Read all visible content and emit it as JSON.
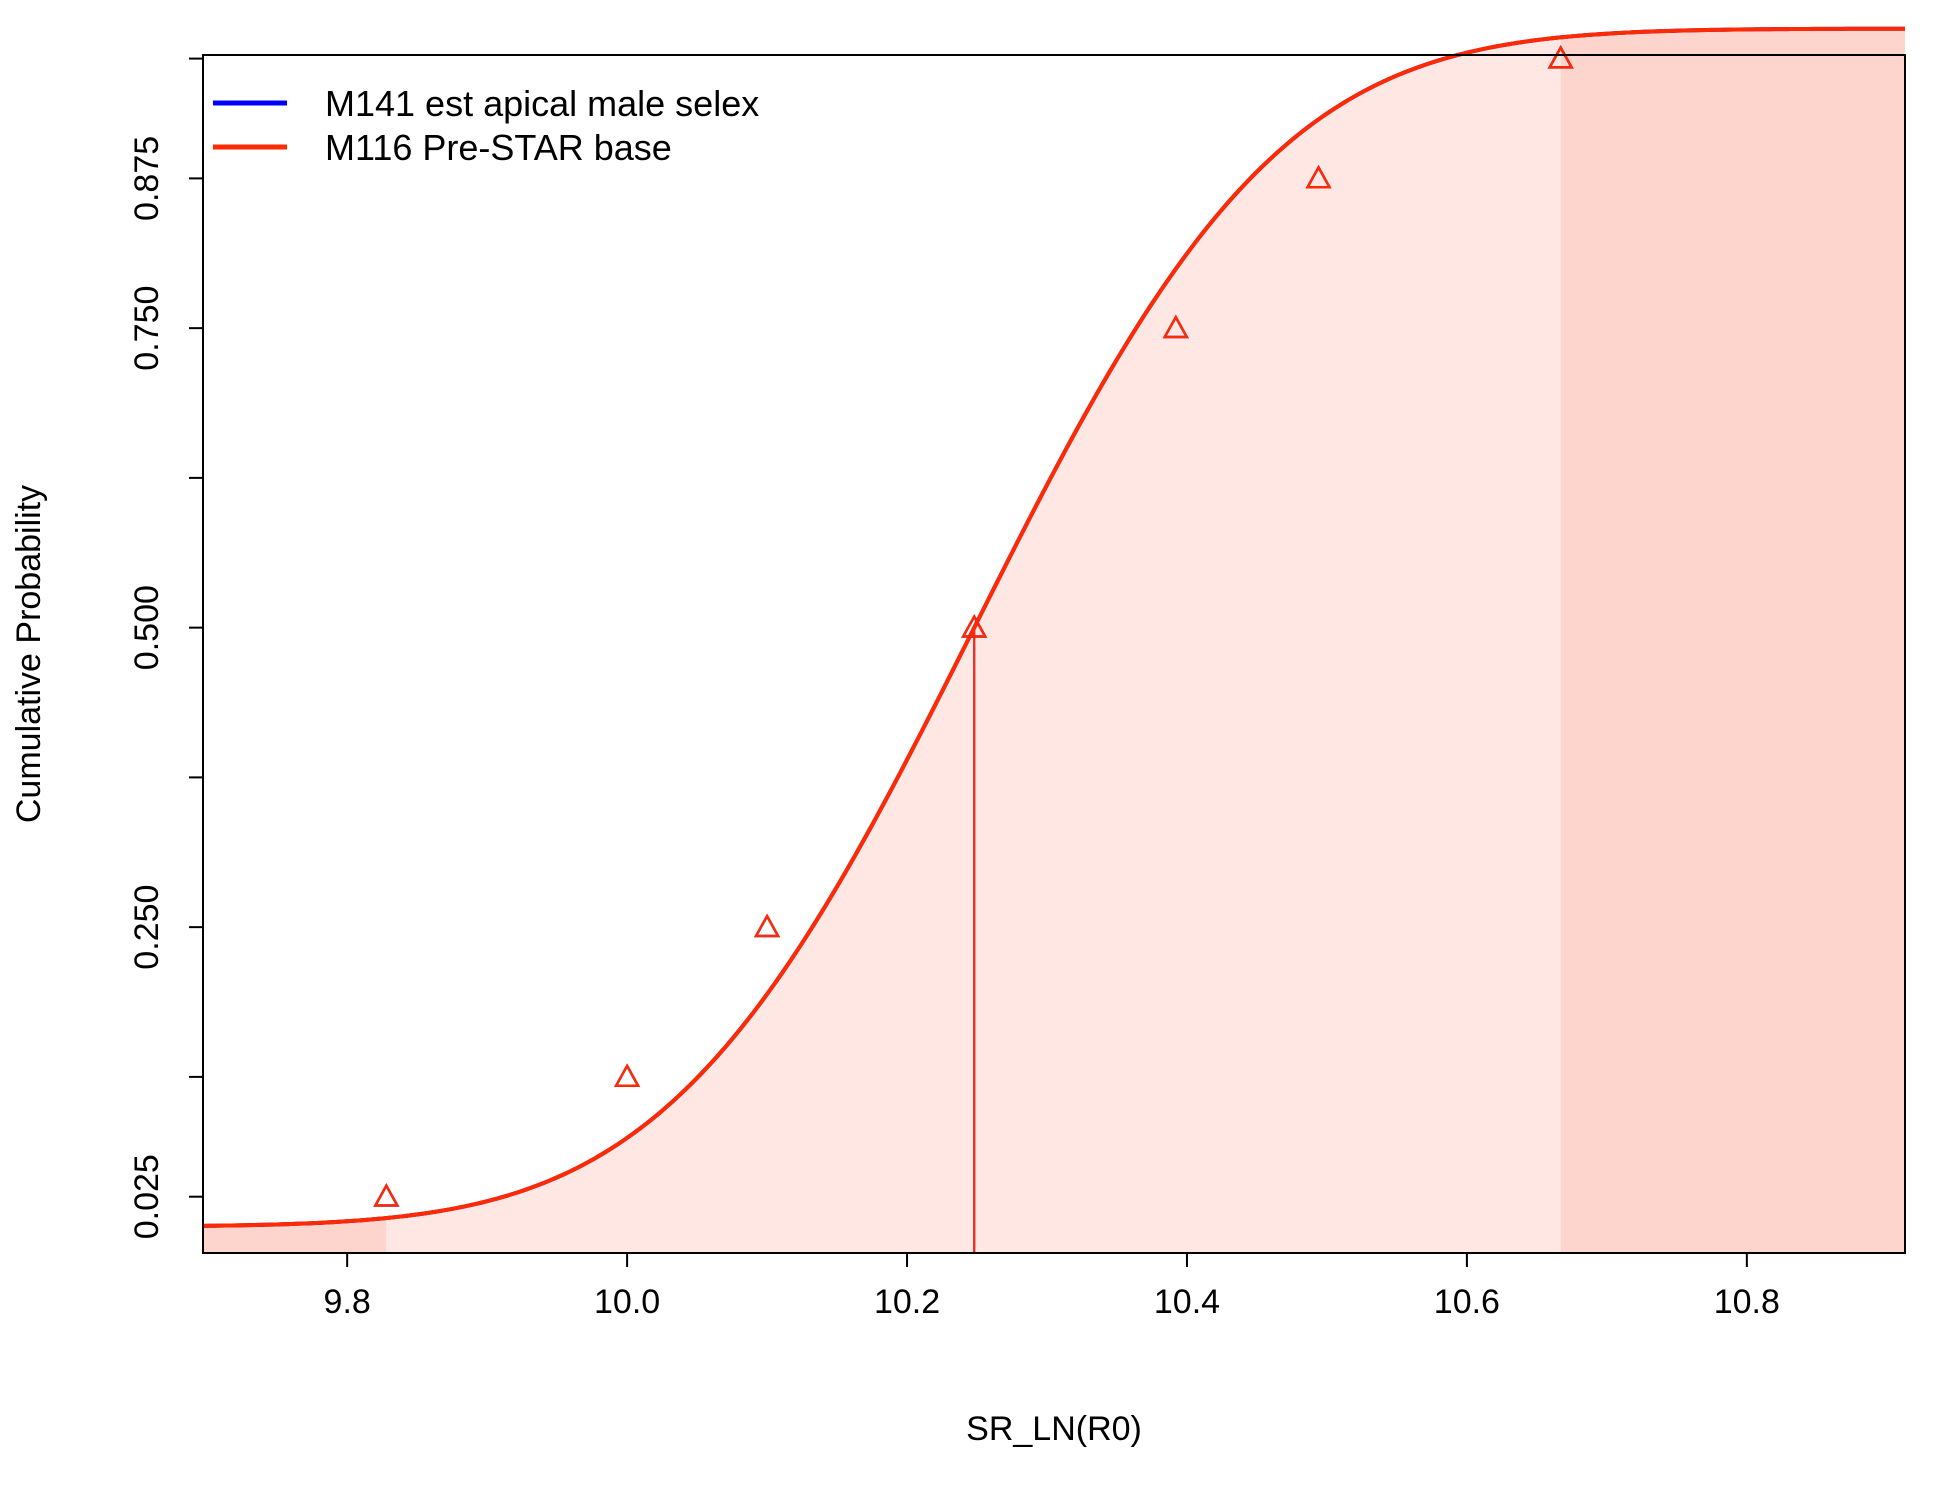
{
  "chart_data": {
    "type": "line",
    "title": "",
    "xlabel": "SR_LN(R0)",
    "ylabel": "Cumulative Probability",
    "xlim": [
      9.697,
      10.913
    ],
    "ylim": [
      -0.022,
      0.978
    ],
    "x_ticks": [
      9.8,
      10.0,
      10.2,
      10.4,
      10.6,
      10.8
    ],
    "x_tick_labels": [
      "9.8",
      "10.0",
      "10.2",
      "10.4",
      "10.6",
      "10.8"
    ],
    "y_ticks": [
      0.025,
      0.125,
      0.25,
      0.375,
      0.5,
      0.625,
      0.75,
      0.875,
      0.975
    ],
    "y_tick_labels": [
      "0.025",
      "",
      "0.250",
      "",
      "0.500",
      "",
      "0.750",
      "0.875",
      ""
    ],
    "grid": false,
    "legend": {
      "position": "top-left",
      "entries": [
        {
          "label": "M141 est apical male selex",
          "color": "#0000ff"
        },
        {
          "label": "M116 Pre-STAR base",
          "color": "#ff2a00"
        }
      ]
    },
    "series": [
      {
        "name": "M141 est apical male selex",
        "color": "#0000ff",
        "mean": 10.248,
        "sd": 0.1715,
        "quantile_x": [
          9.828,
          10.0,
          10.1,
          10.248,
          10.392,
          10.494,
          10.667
        ],
        "quantile_p": [
          0.025,
          0.125,
          0.25,
          0.5,
          0.75,
          0.875,
          0.975
        ],
        "median": 10.248
      },
      {
        "name": "M116 Pre-STAR base",
        "color": "#ff2a00",
        "mean": 10.248,
        "sd": 0.1715,
        "quantile_x": [
          9.828,
          10.0,
          10.1,
          10.248,
          10.392,
          10.494,
          10.667
        ],
        "quantile_p": [
          0.025,
          0.125,
          0.25,
          0.5,
          0.75,
          0.875,
          0.975
        ],
        "median": 10.248
      }
    ],
    "shading": {
      "interval_color": "#ffe8e3",
      "tail_color": "#fdd5cd",
      "lower_tail_upper_x": 9.828,
      "upper_tail_lower_x": 10.667
    }
  }
}
